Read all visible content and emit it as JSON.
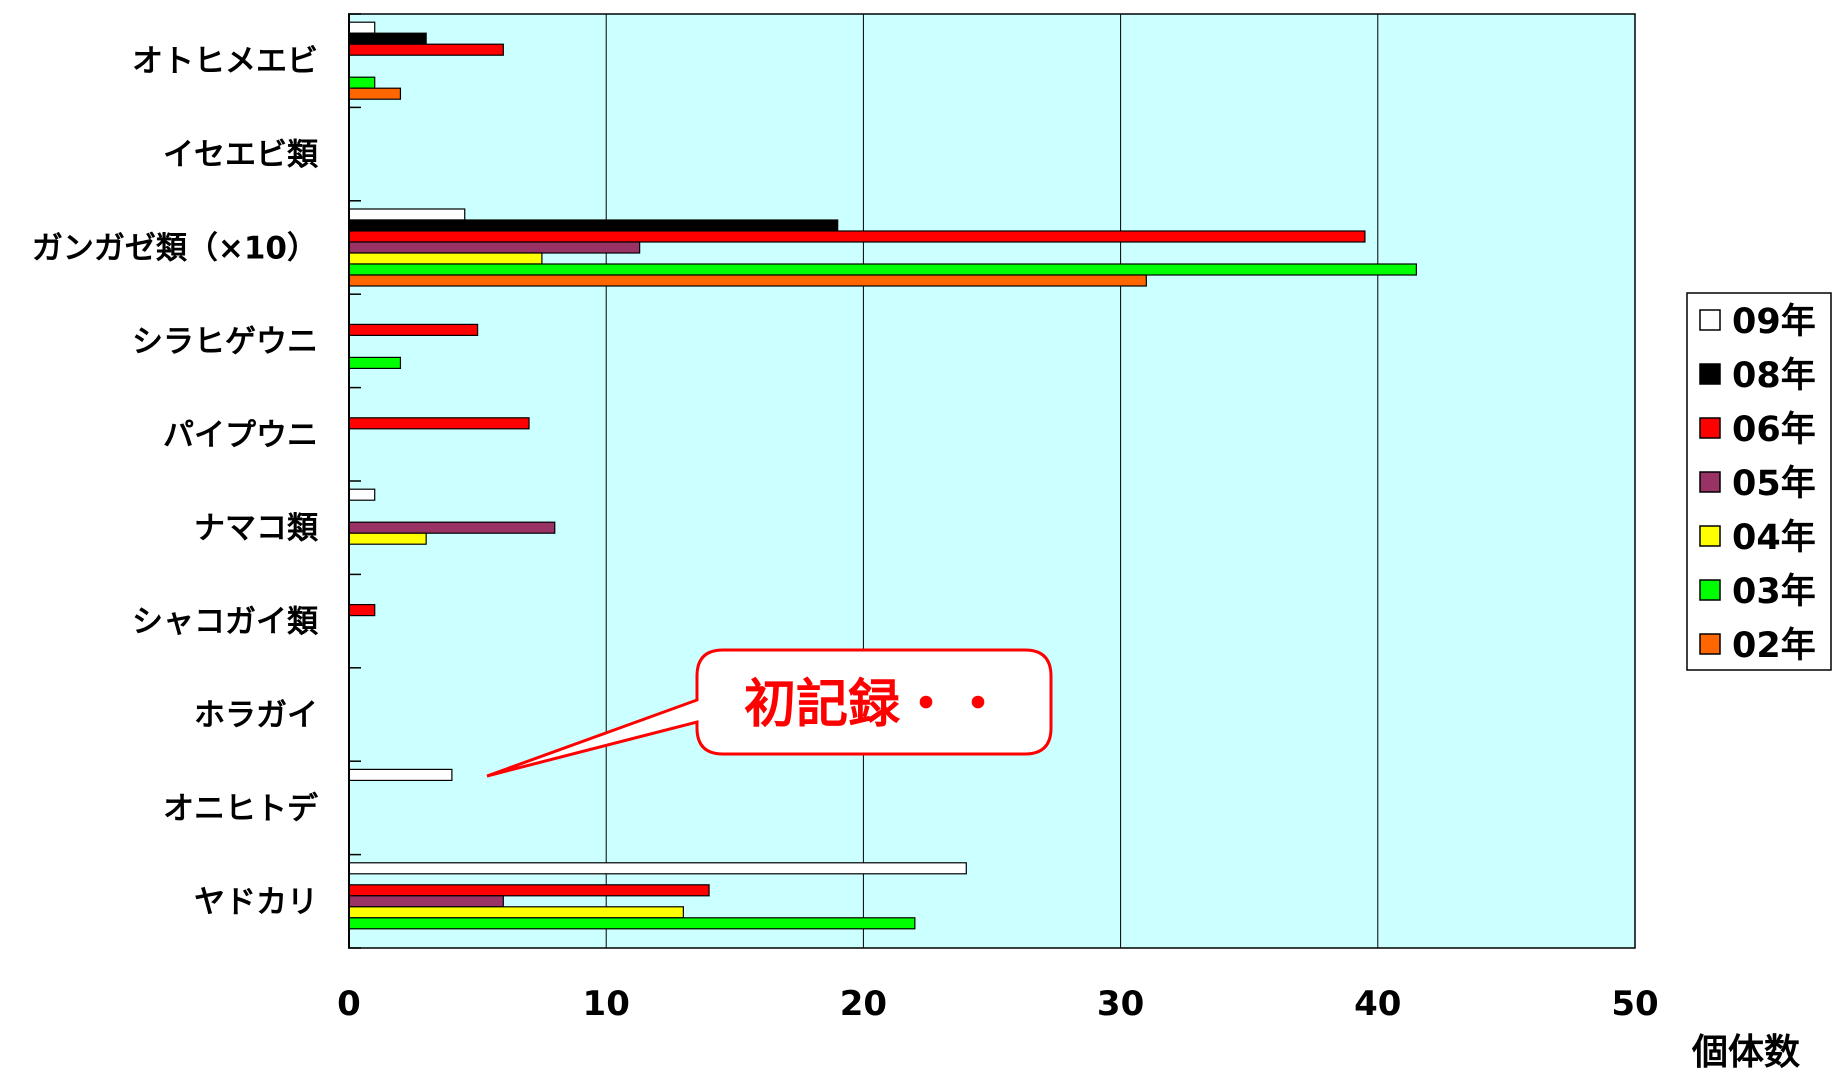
{
  "chart_data": {
    "type": "bar",
    "orientation": "horizontal",
    "title": "",
    "xlabel": "個体数",
    "ylabel": "",
    "xlim": [
      0,
      50
    ],
    "x_ticks": [
      0,
      10,
      20,
      30,
      40,
      50
    ],
    "grid": "vertical",
    "legend_position": "right",
    "plot_background": "#ccffff",
    "categories": [
      "オトヒメエビ",
      "イセエビ類",
      "ガンガゼ類（×10）",
      "シラヒゲウニ",
      "パイプウニ",
      "ナマコ類",
      "シャコガイ類",
      "ホラガイ",
      "オニヒトデ",
      "ヤドカリ"
    ],
    "series": [
      {
        "name": "09年",
        "color": "#ffffff",
        "values": [
          1,
          0,
          4.5,
          0,
          0,
          1,
          0,
          0,
          4,
          24
        ]
      },
      {
        "name": "08年",
        "color": "#000000",
        "values": [
          3,
          0,
          19,
          0,
          0,
          0,
          0,
          0,
          0,
          0
        ]
      },
      {
        "name": "06年",
        "color": "#ff0000",
        "values": [
          6,
          0,
          39.5,
          5,
          7,
          0,
          1,
          0,
          0,
          14
        ]
      },
      {
        "name": "05年",
        "color": "#993366",
        "values": [
          0,
          0,
          11.3,
          0,
          0,
          8,
          0,
          0,
          0,
          6
        ]
      },
      {
        "name": "04年",
        "color": "#ffff00",
        "values": [
          0,
          0,
          7.5,
          0,
          0,
          3,
          0,
          0,
          0,
          13
        ]
      },
      {
        "name": "03年",
        "color": "#00ff00",
        "values": [
          1,
          0,
          41.5,
          2,
          0,
          0,
          0,
          0,
          0,
          22
        ]
      },
      {
        "name": "02年",
        "color": "#ff6600",
        "values": [
          2,
          0,
          31,
          0,
          0,
          0,
          0,
          0,
          0,
          0
        ]
      }
    ],
    "annotations": [
      {
        "text": "初記録・・",
        "points_to_category": "オニヒトデ",
        "points_to_series": "09年",
        "color": "#ff0000"
      }
    ]
  }
}
